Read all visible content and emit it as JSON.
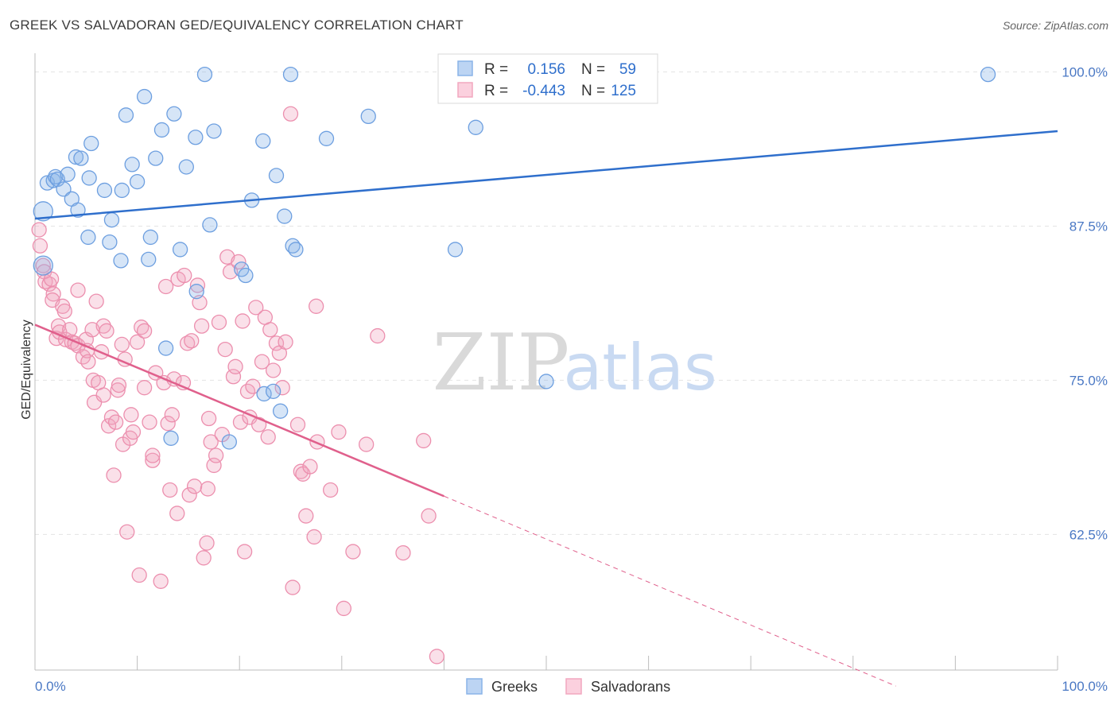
{
  "title": "GREEK VS SALVADORAN GED/EQUIVALENCY CORRELATION CHART",
  "source": "Source: ZipAtlas.com",
  "watermark": {
    "zip": "ZIP",
    "atlas": "atlas"
  },
  "colors": {
    "greeks": "#8ab4e8",
    "greeks_line": "#2f6fcc",
    "salvadorans": "#f2a7bf",
    "salvadorans_line": "#e0608c",
    "tick_text": "#4a78c4",
    "grid": "#e4e4e4"
  },
  "legend": {
    "rows": [
      {
        "r_label": "R =",
        "r_value": "0.156",
        "n_label": "N =",
        "n_value": "59"
      },
      {
        "r_label": "R =",
        "r_value": "-0.443",
        "n_label": "N =",
        "n_value": "125"
      }
    ]
  },
  "bottom_legend": [
    "Greeks",
    "Salvadorans"
  ],
  "chart_data": {
    "type": "scatter",
    "title": "GREEK VS SALVADORAN GED/EQUIVALENCY CORRELATION CHART",
    "xlabel": "",
    "ylabel": "GED/Equivalency",
    "xlim": [
      0,
      100
    ],
    "ylim": [
      51.5,
      101
    ],
    "x_tick_labels": [
      "0.0%",
      "100.0%"
    ],
    "y_ticks": [
      62.5,
      75.0,
      87.5,
      100.0
    ],
    "y_tick_labels": [
      "62.5%",
      "75.0%",
      "87.5%",
      "100.0%"
    ],
    "grid": true,
    "legend_position": "top-center",
    "series": [
      {
        "name": "Greeks",
        "r": 0.156,
        "n": 59,
        "trend": {
          "x": [
            0,
            100
          ],
          "y": [
            88.1,
            95.2
          ]
        },
        "points": [
          [
            0.8,
            88.7
          ],
          [
            0.8,
            84.3
          ],
          [
            1.2,
            91.0
          ],
          [
            1.8,
            91.2
          ],
          [
            2.0,
            91.5
          ],
          [
            2.2,
            91.3
          ],
          [
            2.8,
            90.5
          ],
          [
            3.2,
            91.7
          ],
          [
            3.6,
            89.7
          ],
          [
            4.2,
            88.8
          ],
          [
            4.0,
            93.1
          ],
          [
            4.5,
            93.0
          ],
          [
            5.3,
            91.4
          ],
          [
            5.5,
            94.2
          ],
          [
            5.2,
            86.6
          ],
          [
            6.8,
            90.4
          ],
          [
            7.5,
            88.0
          ],
          [
            8.5,
            90.4
          ],
          [
            7.3,
            86.2
          ],
          [
            8.4,
            84.7
          ],
          [
            8.9,
            96.5
          ],
          [
            9.5,
            92.5
          ],
          [
            10.0,
            91.1
          ],
          [
            10.7,
            98.0
          ],
          [
            11.1,
            84.8
          ],
          [
            11.3,
            86.6
          ],
          [
            11.8,
            93.0
          ],
          [
            12.4,
            95.3
          ],
          [
            13.6,
            96.6
          ],
          [
            14.2,
            85.6
          ],
          [
            14.8,
            92.3
          ],
          [
            15.7,
            94.7
          ],
          [
            16.6,
            99.8
          ],
          [
            17.1,
            87.6
          ],
          [
            17.5,
            95.2
          ],
          [
            12.8,
            77.6
          ],
          [
            13.3,
            70.3
          ],
          [
            15.8,
            82.2
          ],
          [
            19.0,
            70.0
          ],
          [
            20.2,
            84.0
          ],
          [
            20.6,
            83.5
          ],
          [
            21.2,
            89.6
          ],
          [
            22.4,
            73.9
          ],
          [
            23.3,
            74.1
          ],
          [
            22.3,
            94.4
          ],
          [
            23.6,
            91.6
          ],
          [
            24.0,
            72.5
          ],
          [
            24.4,
            88.3
          ],
          [
            25.0,
            99.8
          ],
          [
            25.2,
            85.9
          ],
          [
            25.5,
            85.6
          ],
          [
            28.5,
            94.6
          ],
          [
            32.6,
            96.4
          ],
          [
            40.5,
            99.7
          ],
          [
            43.1,
            95.5
          ],
          [
            44.4,
            99.7
          ],
          [
            41.1,
            85.6
          ],
          [
            50.0,
            74.9
          ],
          [
            93.2,
            99.8
          ]
        ]
      },
      {
        "name": "Salvadorans",
        "r": -0.443,
        "n": 125,
        "trend": {
          "x": [
            0,
            40
          ],
          "y": [
            79.5,
            65.6
          ]
        },
        "trend_dashed": {
          "x": [
            40,
            84.2
          ],
          "y": [
            65.6,
            50.2
          ]
        },
        "points": [
          [
            0.4,
            87.2
          ],
          [
            0.5,
            85.9
          ],
          [
            0.8,
            84.3
          ],
          [
            0.9,
            83.8
          ],
          [
            1.0,
            83.0
          ],
          [
            1.4,
            82.8
          ],
          [
            1.6,
            83.2
          ],
          [
            1.8,
            82.0
          ],
          [
            1.7,
            81.5
          ],
          [
            2.3,
            79.4
          ],
          [
            2.1,
            78.4
          ],
          [
            2.4,
            78.9
          ],
          [
            2.7,
            81.0
          ],
          [
            2.9,
            80.6
          ],
          [
            3.0,
            78.3
          ],
          [
            3.4,
            79.1
          ],
          [
            3.6,
            78.1
          ],
          [
            3.9,
            78.0
          ],
          [
            4.2,
            77.8
          ],
          [
            4.2,
            82.3
          ],
          [
            4.7,
            76.9
          ],
          [
            5.0,
            78.3
          ],
          [
            5.1,
            77.4
          ],
          [
            5.2,
            76.5
          ],
          [
            5.6,
            79.1
          ],
          [
            5.7,
            75.0
          ],
          [
            5.8,
            73.2
          ],
          [
            6.0,
            81.4
          ],
          [
            6.2,
            74.8
          ],
          [
            6.5,
            77.3
          ],
          [
            6.7,
            73.8
          ],
          [
            6.7,
            79.4
          ],
          [
            7.0,
            79.0
          ],
          [
            7.2,
            71.3
          ],
          [
            7.5,
            72.0
          ],
          [
            7.7,
            67.3
          ],
          [
            7.9,
            71.6
          ],
          [
            8.1,
            74.2
          ],
          [
            8.2,
            74.6
          ],
          [
            8.5,
            77.9
          ],
          [
            8.6,
            69.8
          ],
          [
            8.8,
            76.7
          ],
          [
            9.0,
            62.7
          ],
          [
            9.3,
            70.3
          ],
          [
            9.4,
            72.2
          ],
          [
            9.6,
            70.8
          ],
          [
            10.0,
            78.1
          ],
          [
            10.2,
            59.2
          ],
          [
            10.4,
            79.3
          ],
          [
            10.7,
            79.0
          ],
          [
            10.7,
            74.4
          ],
          [
            11.2,
            71.6
          ],
          [
            11.5,
            68.5
          ],
          [
            11.5,
            68.9
          ],
          [
            11.8,
            75.6
          ],
          [
            12.3,
            58.7
          ],
          [
            12.6,
            74.8
          ],
          [
            12.8,
            82.6
          ],
          [
            13.0,
            71.5
          ],
          [
            13.2,
            66.1
          ],
          [
            13.4,
            72.2
          ],
          [
            13.6,
            75.1
          ],
          [
            13.9,
            64.2
          ],
          [
            14.0,
            83.2
          ],
          [
            14.5,
            74.8
          ],
          [
            14.6,
            83.5
          ],
          [
            14.9,
            78.0
          ],
          [
            15.1,
            65.7
          ],
          [
            15.3,
            78.2
          ],
          [
            15.6,
            66.4
          ],
          [
            15.9,
            82.7
          ],
          [
            16.1,
            81.3
          ],
          [
            16.3,
            79.4
          ],
          [
            16.5,
            60.6
          ],
          [
            16.8,
            61.8
          ],
          [
            16.9,
            66.2
          ],
          [
            17.0,
            71.9
          ],
          [
            17.2,
            70.0
          ],
          [
            17.5,
            68.1
          ],
          [
            17.7,
            68.9
          ],
          [
            18.0,
            79.7
          ],
          [
            18.3,
            70.6
          ],
          [
            18.6,
            77.5
          ],
          [
            18.8,
            85.0
          ],
          [
            19.1,
            83.8
          ],
          [
            19.4,
            75.3
          ],
          [
            19.6,
            76.1
          ],
          [
            19.9,
            84.6
          ],
          [
            20.1,
            71.6
          ],
          [
            20.3,
            79.8
          ],
          [
            20.5,
            61.1
          ],
          [
            20.8,
            74.1
          ],
          [
            21.0,
            72.0
          ],
          [
            21.3,
            74.5
          ],
          [
            21.6,
            80.9
          ],
          [
            21.9,
            71.4
          ],
          [
            22.2,
            76.5
          ],
          [
            22.5,
            80.1
          ],
          [
            22.8,
            70.4
          ],
          [
            23.0,
            79.1
          ],
          [
            23.3,
            75.8
          ],
          [
            23.6,
            78.0
          ],
          [
            23.9,
            77.2
          ],
          [
            24.2,
            74.4
          ],
          [
            24.5,
            78.1
          ],
          [
            25.0,
            96.6
          ],
          [
            25.2,
            58.2
          ],
          [
            25.7,
            71.4
          ],
          [
            26.0,
            67.6
          ],
          [
            26.2,
            67.4
          ],
          [
            26.5,
            64.0
          ],
          [
            26.9,
            68.0
          ],
          [
            27.3,
            62.3
          ],
          [
            27.5,
            81.0
          ],
          [
            27.6,
            70.0
          ],
          [
            28.9,
            66.1
          ],
          [
            29.7,
            70.8
          ],
          [
            30.2,
            56.5
          ],
          [
            31.1,
            61.1
          ],
          [
            32.4,
            69.8
          ],
          [
            33.5,
            78.6
          ],
          [
            36.0,
            61.0
          ],
          [
            38.0,
            70.1
          ],
          [
            38.5,
            64.0
          ],
          [
            39.3,
            52.6
          ]
        ]
      }
    ]
  }
}
